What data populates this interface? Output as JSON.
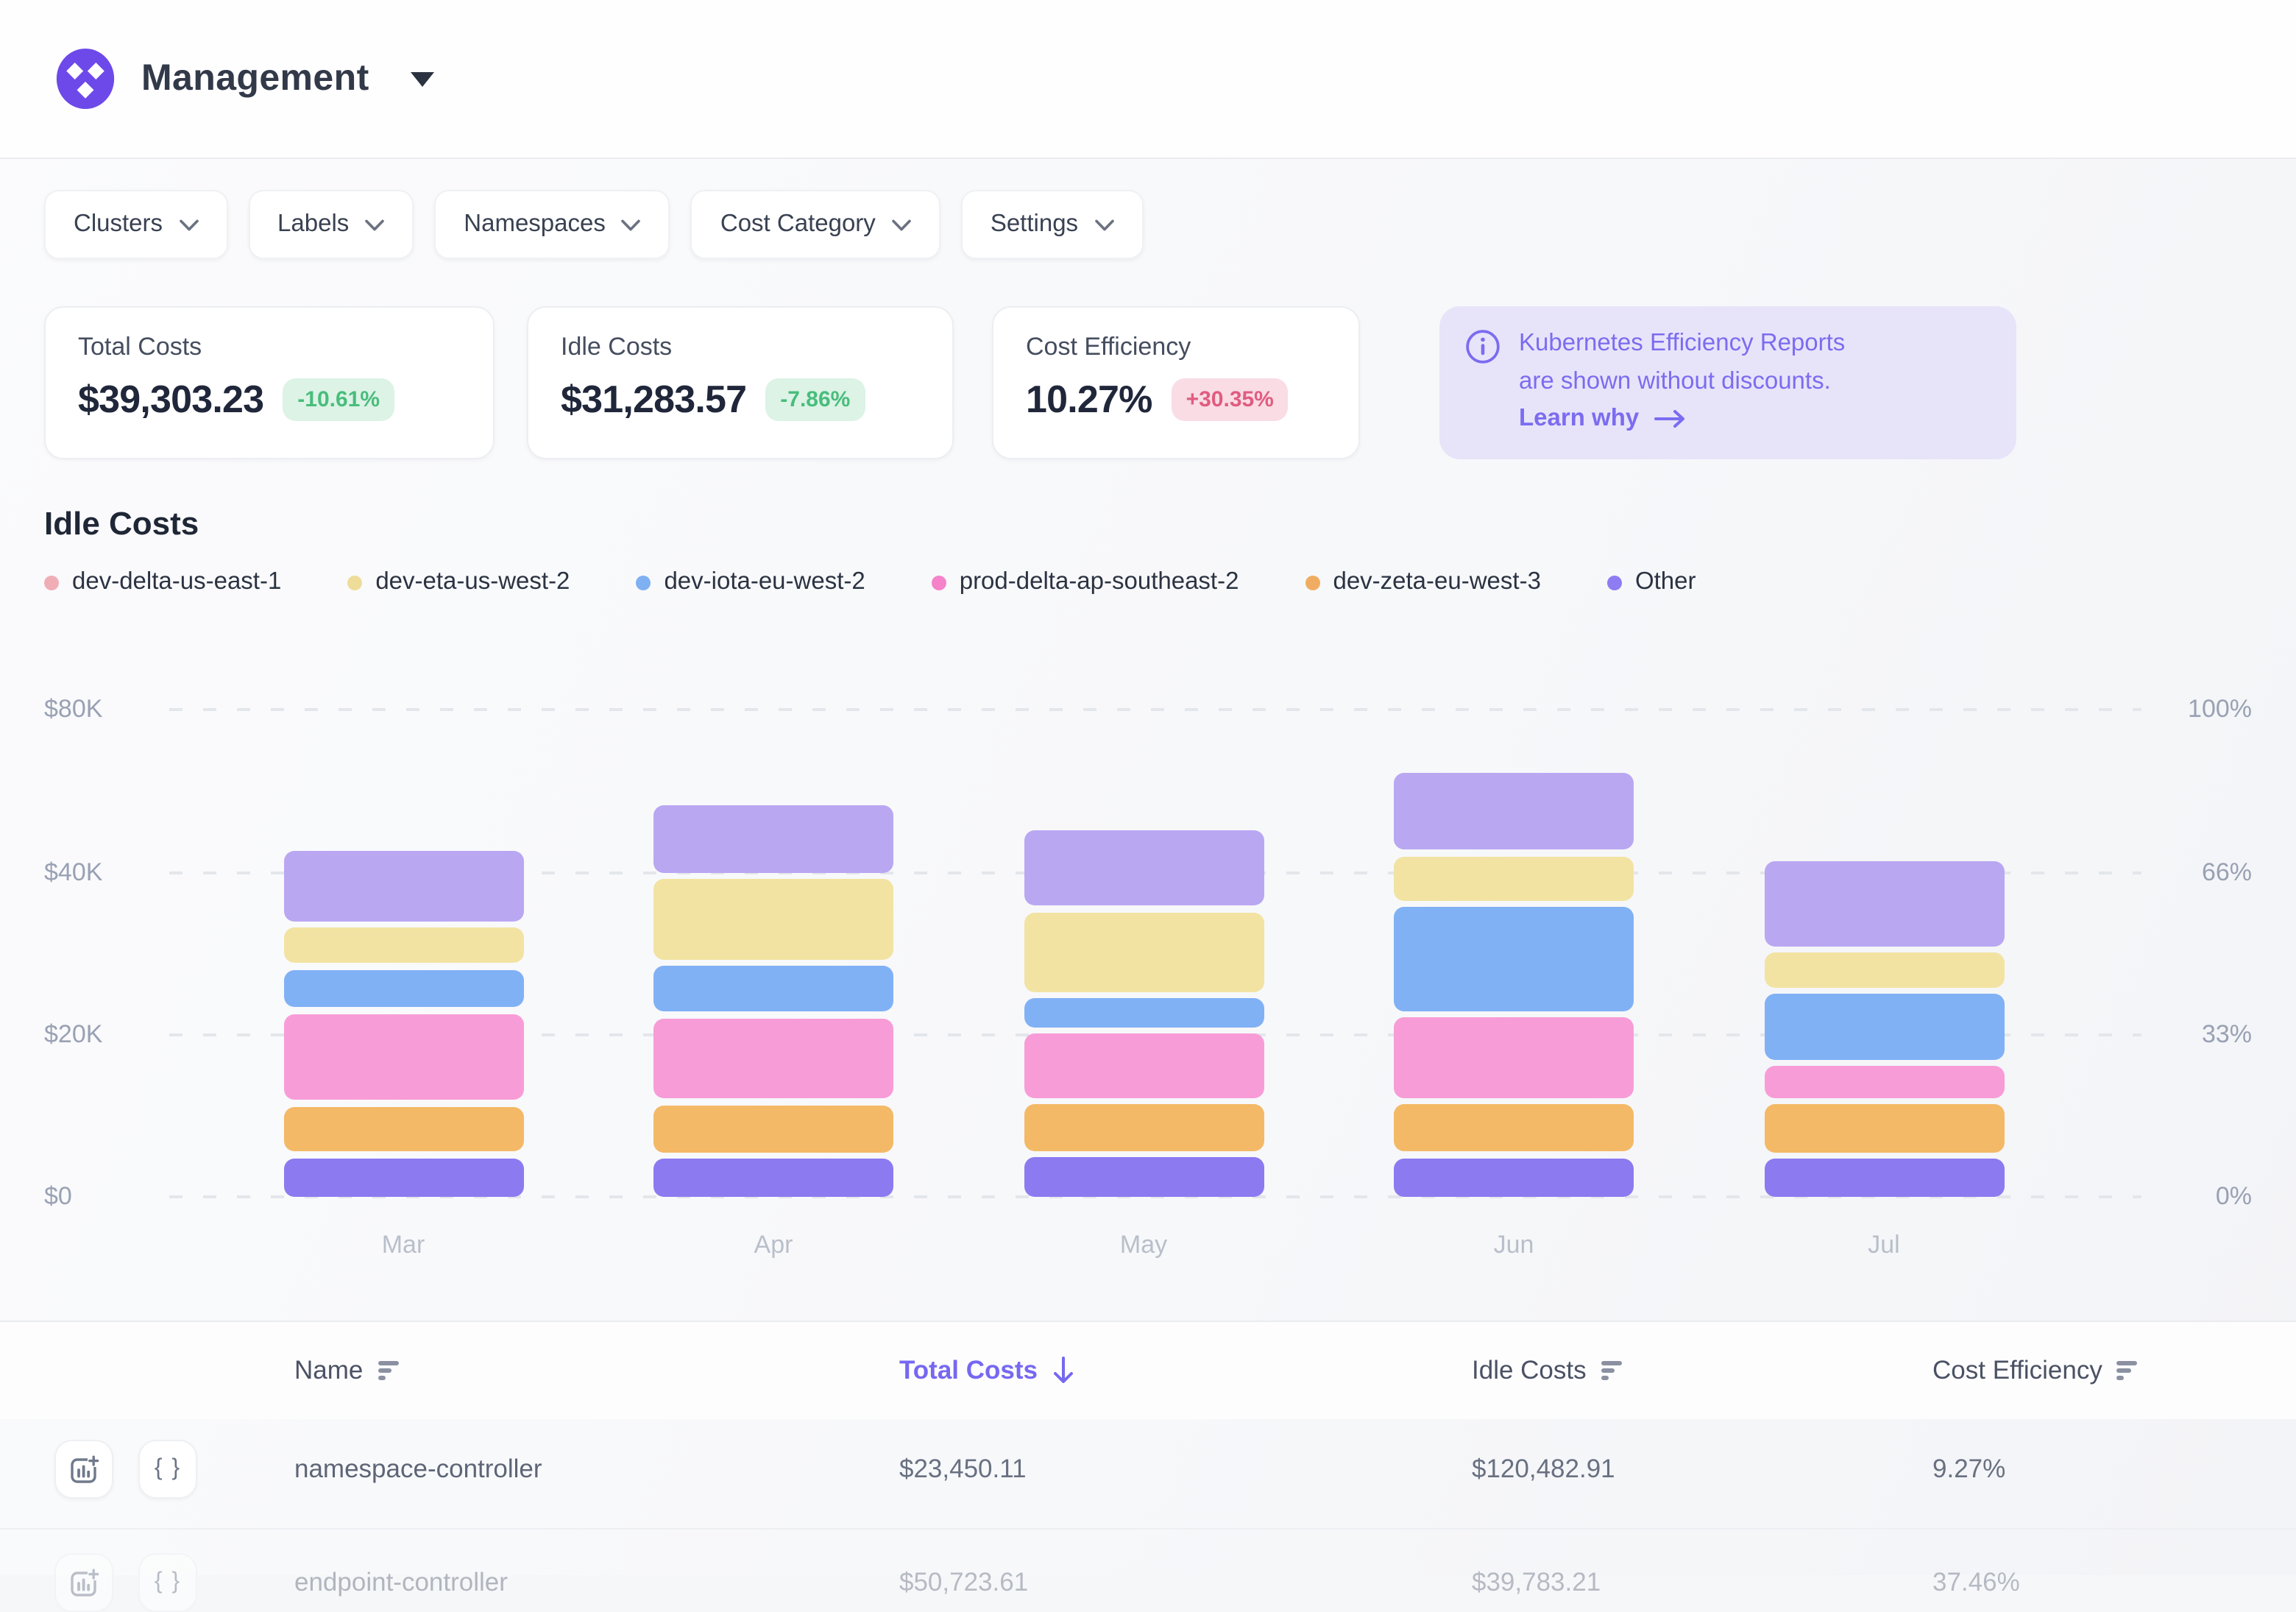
{
  "header": {
    "title": "Management"
  },
  "filters": [
    {
      "label": "Clusters"
    },
    {
      "label": "Labels"
    },
    {
      "label": "Namespaces"
    },
    {
      "label": "Cost Category"
    },
    {
      "label": "Settings"
    }
  ],
  "stats": [
    {
      "label": "Total Costs",
      "value": "$39,303.23",
      "delta": "-10.61%",
      "tone": "green"
    },
    {
      "label": "Idle Costs",
      "value": "$31,283.57",
      "delta": "-7.86%",
      "tone": "green"
    },
    {
      "label": "Cost Efficiency",
      "value": "10.27%",
      "delta": "+30.35%",
      "tone": "red"
    }
  ],
  "banner": {
    "line1": "Kubernetes Efficiency Reports",
    "line2": "are shown without discounts.",
    "link_label": "Learn why",
    "bg_color": "#e7e4f9",
    "text_color": "#7b6cf0"
  },
  "section_title": "Idle Costs",
  "chart_data": {
    "type": "bar",
    "stacked": true,
    "title": "Idle Costs",
    "categories": [
      "Mar",
      "Apr",
      "May",
      "Jun",
      "Jul"
    ],
    "series_bottom_to_top": [
      {
        "name": "Other",
        "color": "#8c7af0",
        "values_k_usd": [
          4.8,
          4.7,
          4.9,
          4.8,
          4.7
        ],
        "px": [
          26.5,
          26,
          27,
          26.5,
          26
        ]
      },
      {
        "name": "dev-zeta-eu-west-3",
        "color": "#f4b967",
        "values_k_usd": [
          5.5,
          5.8,
          5.7,
          5.8,
          5.9
        ],
        "px": [
          30.5,
          32,
          31.5,
          32,
          32.5
        ]
      },
      {
        "name": "prod-delta-ap-southeast-2",
        "color": "#f89cd8",
        "values_k_usd": [
          10.6,
          9.9,
          7.9,
          9.9,
          3.9
        ],
        "px": [
          58.5,
          54.5,
          43.5,
          54.5,
          21.5
        ]
      },
      {
        "name": "dev-iota-eu-west-2",
        "color": "#81b1f5",
        "values_k_usd": [
          4.6,
          5.6,
          3.5,
          12.8,
          8.1
        ],
        "px": [
          25.5,
          31,
          19.5,
          70.5,
          44.5
        ]
      },
      {
        "name": "dev-eta-us-west-2",
        "color": "#f2e3a3",
        "values_k_usd": [
          4.4,
          9.9,
          9.8,
          5.5,
          4.3
        ],
        "px": [
          24,
          54.5,
          54,
          30,
          23.5
        ]
      },
      {
        "name": "dev-delta-us-east-1",
        "color": "#b9a7f2",
        "values_k_usd": [
          11.4,
          16.6,
          14.7,
          18.9,
          12.1
        ],
        "px": [
          47.5,
          46,
          51,
          52.5,
          58
        ]
      }
    ],
    "legend": [
      {
        "label": "dev-delta-us-east-1",
        "dot_color": "#efaeb5"
      },
      {
        "label": "dev-eta-us-west-2",
        "dot_color": "#eedc9a"
      },
      {
        "label": "dev-iota-eu-west-2",
        "dot_color": "#7fb0f2"
      },
      {
        "label": "prod-delta-ap-southeast-2",
        "dot_color": "#f583c9"
      },
      {
        "label": "dev-zeta-eu-west-3",
        "dot_color": "#f0ad62"
      },
      {
        "label": "Other",
        "dot_color": "#8d7cf2"
      }
    ],
    "y_axis_left": {
      "labels": [
        "$80K",
        "$40K",
        "$20K",
        "$0"
      ]
    },
    "y_axis_right": {
      "labels": [
        "100%",
        "66%",
        "33%",
        "0%"
      ]
    },
    "grid": "dashed horizontal",
    "legend_position": "top"
  },
  "table": {
    "columns": [
      {
        "label": "Name",
        "active": false
      },
      {
        "label": "Total Costs",
        "active": true,
        "sort_direction": "desc"
      },
      {
        "label": "Idle Costs",
        "active": false
      },
      {
        "label": "Cost Efficiency",
        "active": false
      }
    ],
    "rows": [
      {
        "name": "namespace-controller",
        "total_costs": "$23,450.11",
        "idle_costs": "$120,482.91",
        "cost_efficiency": "9.27%"
      },
      {
        "name": "endpoint-controller",
        "total_costs": "$50,723.61",
        "idle_costs": "$39,783.21",
        "cost_efficiency": "37.46%"
      }
    ],
    "row_icons": [
      "chart-report-icon",
      "braces-icon"
    ]
  },
  "colors": {
    "accent_purple": "#7668f0",
    "logo_purple": "#6d49ea",
    "badge_green_bg": "#dcf3e6",
    "badge_green_text": "#49bd7c",
    "badge_red_bg": "#f9dce4",
    "badge_red_text": "#e05c80",
    "axis_text": "#99a1b3"
  }
}
